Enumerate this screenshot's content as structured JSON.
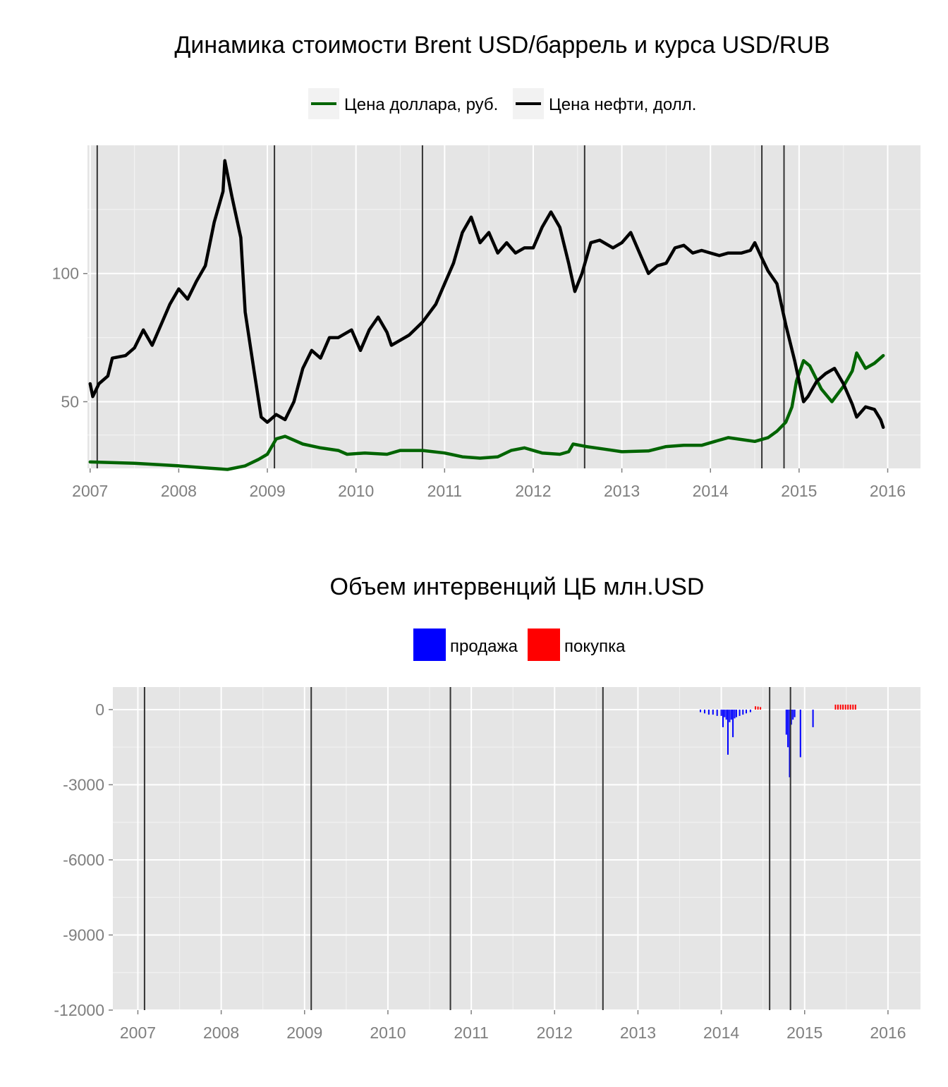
{
  "colors": {
    "panel_bg": "#e5e5e5",
    "grid_major": "#ffffff",
    "grid_minor": "#f2f2f2",
    "tick_text": "#7f7f7f",
    "event_line": "#333333",
    "usd_line": "#006400",
    "oil_line": "#000000",
    "sell": "#0000ff",
    "buy": "#ff0000"
  },
  "chart_data": [
    {
      "type": "line",
      "title": "Динамика стоимости Brent USD/баррель и курса USD/RUB",
      "xlabel": "",
      "ylabel": "",
      "x_ticks": [
        "2007",
        "2008",
        "2009",
        "2010",
        "2011",
        "2012",
        "2013",
        "2014",
        "2015",
        "2016"
      ],
      "y_ticks": [
        "50",
        "100"
      ],
      "xlim": [
        2006.97,
        2016.37
      ],
      "ylim": [
        24,
        150
      ],
      "grid": true,
      "legend_position": "top",
      "event_lines_x": [
        2007.08,
        2009.08,
        2010.75,
        2012.58,
        2014.58,
        2014.83
      ],
      "series": [
        {
          "name": "Цена доллара, руб.",
          "color_key": "usd_line",
          "points": [
            [
              2007.0,
              26.5
            ],
            [
              2007.5,
              26.0
            ],
            [
              2008.0,
              25.0
            ],
            [
              2008.3,
              24.2
            ],
            [
              2008.55,
              23.6
            ],
            [
              2008.75,
              25.0
            ],
            [
              2008.9,
              27.5
            ],
            [
              2009.0,
              29.5
            ],
            [
              2009.1,
              35.5
            ],
            [
              2009.2,
              36.5
            ],
            [
              2009.4,
              33.5
            ],
            [
              2009.6,
              32.0
            ],
            [
              2009.8,
              31.0
            ],
            [
              2009.9,
              29.5
            ],
            [
              2010.1,
              30.0
            ],
            [
              2010.35,
              29.5
            ],
            [
              2010.5,
              31.0
            ],
            [
              2010.75,
              31.0
            ],
            [
              2011.0,
              30.0
            ],
            [
              2011.2,
              28.5
            ],
            [
              2011.4,
              28.0
            ],
            [
              2011.6,
              28.5
            ],
            [
              2011.75,
              31.0
            ],
            [
              2011.9,
              32.0
            ],
            [
              2012.1,
              30.0
            ],
            [
              2012.3,
              29.5
            ],
            [
              2012.4,
              30.5
            ],
            [
              2012.45,
              33.5
            ],
            [
              2012.6,
              32.5
            ],
            [
              2012.8,
              31.5
            ],
            [
              2013.0,
              30.5
            ],
            [
              2013.3,
              30.8
            ],
            [
              2013.5,
              32.5
            ],
            [
              2013.7,
              33.0
            ],
            [
              2013.9,
              33.0
            ],
            [
              2014.05,
              34.5
            ],
            [
              2014.2,
              36.0
            ],
            [
              2014.4,
              35.0
            ],
            [
              2014.5,
              34.5
            ],
            [
              2014.65,
              36.0
            ],
            [
              2014.75,
              38.5
            ],
            [
              2014.85,
              42.0
            ],
            [
              2014.92,
              48.0
            ],
            [
              2014.97,
              58.0
            ],
            [
              2015.05,
              66.0
            ],
            [
              2015.12,
              64.0
            ],
            [
              2015.25,
              55.0
            ],
            [
              2015.37,
              50.0
            ],
            [
              2015.5,
              56.0
            ],
            [
              2015.6,
              62.0
            ],
            [
              2015.65,
              69.0
            ],
            [
              2015.75,
              63.0
            ],
            [
              2015.85,
              65.0
            ],
            [
              2015.95,
              68.0
            ]
          ]
        },
        {
          "name": "Цена нефти, долл.",
          "color_key": "oil_line",
          "points": [
            [
              2007.0,
              57.0
            ],
            [
              2007.03,
              52.0
            ],
            [
              2007.1,
              57.0
            ],
            [
              2007.2,
              60.0
            ],
            [
              2007.25,
              67.0
            ],
            [
              2007.4,
              68.0
            ],
            [
              2007.5,
              71.0
            ],
            [
              2007.6,
              78.0
            ],
            [
              2007.7,
              72.0
            ],
            [
              2007.8,
              80.0
            ],
            [
              2007.9,
              88.0
            ],
            [
              2008.0,
              94.0
            ],
            [
              2008.1,
              90.0
            ],
            [
              2008.2,
              97.0
            ],
            [
              2008.3,
              103.0
            ],
            [
              2008.4,
              120.0
            ],
            [
              2008.5,
              132.0
            ],
            [
              2008.52,
              144.0
            ],
            [
              2008.6,
              130.0
            ],
            [
              2008.7,
              114.0
            ],
            [
              2008.75,
              85.0
            ],
            [
              2008.85,
              62.0
            ],
            [
              2008.93,
              44.0
            ],
            [
              2009.0,
              42.0
            ],
            [
              2009.1,
              45.0
            ],
            [
              2009.2,
              43.0
            ],
            [
              2009.3,
              50.0
            ],
            [
              2009.4,
              63.0
            ],
            [
              2009.5,
              70.0
            ],
            [
              2009.6,
              67.0
            ],
            [
              2009.7,
              75.0
            ],
            [
              2009.8,
              75.0
            ],
            [
              2009.95,
              78.0
            ],
            [
              2010.05,
              70.0
            ],
            [
              2010.15,
              78.0
            ],
            [
              2010.25,
              83.0
            ],
            [
              2010.35,
              77.0
            ],
            [
              2010.4,
              72.0
            ],
            [
              2010.5,
              74.0
            ],
            [
              2010.6,
              76.0
            ],
            [
              2010.75,
              81.0
            ],
            [
              2010.9,
              88.0
            ],
            [
              2011.0,
              96.0
            ],
            [
              2011.1,
              104.0
            ],
            [
              2011.2,
              116.0
            ],
            [
              2011.3,
              122.0
            ],
            [
              2011.4,
              112.0
            ],
            [
              2011.5,
              116.0
            ],
            [
              2011.6,
              108.0
            ],
            [
              2011.7,
              112.0
            ],
            [
              2011.8,
              108.0
            ],
            [
              2011.9,
              110.0
            ],
            [
              2012.0,
              110.0
            ],
            [
              2012.1,
              118.0
            ],
            [
              2012.2,
              124.0
            ],
            [
              2012.3,
              118.0
            ],
            [
              2012.4,
              104.0
            ],
            [
              2012.47,
              93.0
            ],
            [
              2012.55,
              100.0
            ],
            [
              2012.65,
              112.0
            ],
            [
              2012.75,
              113.0
            ],
            [
              2012.9,
              110.0
            ],
            [
              2013.0,
              112.0
            ],
            [
              2013.1,
              116.0
            ],
            [
              2013.2,
              108.0
            ],
            [
              2013.3,
              100.0
            ],
            [
              2013.4,
              103.0
            ],
            [
              2013.5,
              104.0
            ],
            [
              2013.6,
              110.0
            ],
            [
              2013.7,
              111.0
            ],
            [
              2013.8,
              108.0
            ],
            [
              2013.9,
              109.0
            ],
            [
              2014.0,
              108.0
            ],
            [
              2014.1,
              107.0
            ],
            [
              2014.2,
              108.0
            ],
            [
              2014.35,
              108.0
            ],
            [
              2014.45,
              109.0
            ],
            [
              2014.5,
              112.0
            ],
            [
              2014.58,
              106.0
            ],
            [
              2014.65,
              101.0
            ],
            [
              2014.75,
              96.0
            ],
            [
              2014.8,
              88.0
            ],
            [
              2014.85,
              80.0
            ],
            [
              2014.95,
              66.0
            ],
            [
              2015.05,
              50.0
            ],
            [
              2015.1,
              52.0
            ],
            [
              2015.2,
              58.0
            ],
            [
              2015.3,
              61.0
            ],
            [
              2015.4,
              63.0
            ],
            [
              2015.5,
              57.0
            ],
            [
              2015.6,
              49.0
            ],
            [
              2015.65,
              44.0
            ],
            [
              2015.75,
              48.0
            ],
            [
              2015.85,
              47.0
            ],
            [
              2015.92,
              43.0
            ],
            [
              2015.95,
              40.0
            ]
          ]
        }
      ]
    },
    {
      "type": "bar",
      "title": "Объем интервенций ЦБ млн.USD",
      "xlabel": "",
      "ylabel": "",
      "x_ticks": [
        "2007",
        "2008",
        "2009",
        "2010",
        "2011",
        "2012",
        "2013",
        "2014",
        "2015",
        "2016"
      ],
      "y_ticks": [
        "0",
        "-3000",
        "-6000",
        "-9000",
        "-12000"
      ],
      "xlim": [
        2006.7,
        2016.39
      ],
      "ylim": [
        -12000,
        900
      ],
      "grid": true,
      "legend_position": "top",
      "event_lines_x": [
        2007.08,
        2009.08,
        2010.75,
        2012.58,
        2014.58,
        2014.83
      ],
      "series": [
        {
          "name": "продажа",
          "color_key": "sell",
          "points": [
            [
              2013.75,
              -100
            ],
            [
              2013.8,
              -150
            ],
            [
              2013.85,
              -200
            ],
            [
              2013.9,
              -200
            ],
            [
              2013.95,
              -250
            ],
            [
              2014.0,
              -250
            ],
            [
              2014.02,
              -700
            ],
            [
              2014.04,
              -300
            ],
            [
              2014.06,
              -400
            ],
            [
              2014.08,
              -1800
            ],
            [
              2014.1,
              -500
            ],
            [
              2014.12,
              -400
            ],
            [
              2014.14,
              -1100
            ],
            [
              2014.16,
              -350
            ],
            [
              2014.18,
              -300
            ],
            [
              2014.22,
              -250
            ],
            [
              2014.26,
              -200
            ],
            [
              2014.3,
              -150
            ],
            [
              2014.35,
              -100
            ],
            [
              2014.78,
              -1000
            ],
            [
              2014.8,
              -1500
            ],
            [
              2014.82,
              -2700
            ],
            [
              2014.84,
              -600
            ],
            [
              2014.86,
              -400
            ],
            [
              2014.88,
              -300
            ],
            [
              2014.95,
              -1900
            ],
            [
              2015.1,
              -700
            ]
          ]
        },
        {
          "name": "покупка",
          "color_key": "buy",
          "points": [
            [
              2014.41,
              130
            ],
            [
              2014.44,
              120
            ],
            [
              2014.47,
              100
            ],
            [
              2015.37,
              200
            ],
            [
              2015.4,
              200
            ],
            [
              2015.43,
              200
            ],
            [
              2015.46,
              200
            ],
            [
              2015.49,
              200
            ],
            [
              2015.52,
              200
            ],
            [
              2015.55,
              200
            ],
            [
              2015.58,
              200
            ],
            [
              2015.61,
              200
            ]
          ]
        }
      ]
    }
  ]
}
